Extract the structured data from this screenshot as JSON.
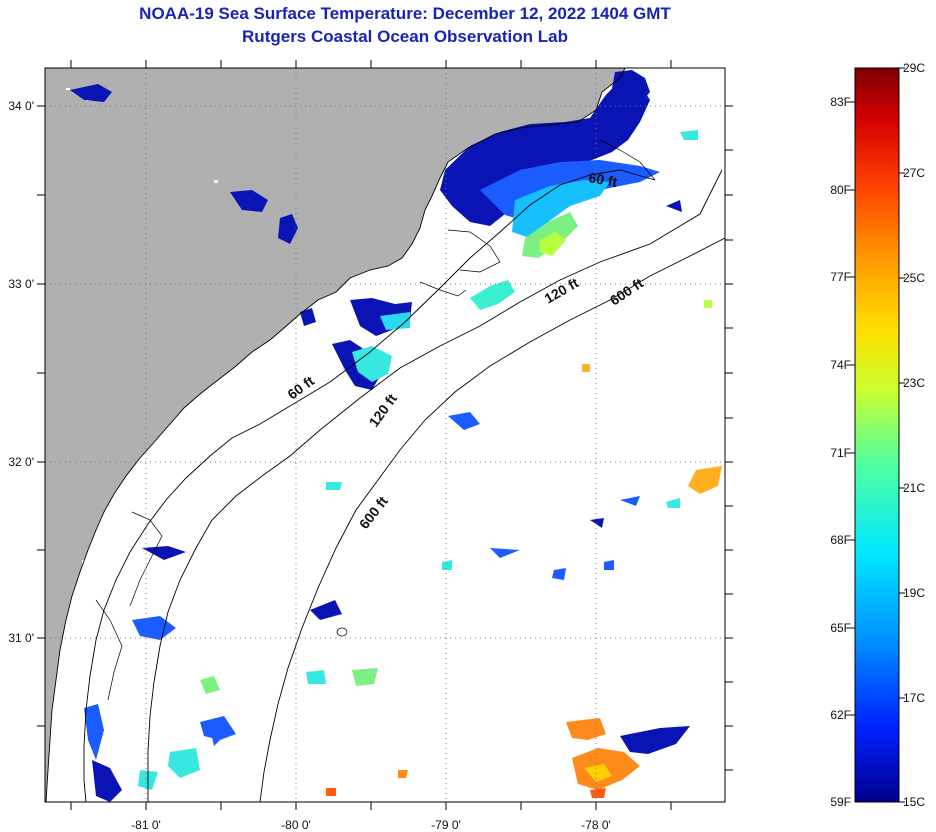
{
  "header": {
    "title": "NOAA-19 Sea Surface Temperature:  December 12, 2022 1404 GMT",
    "subtitle": "Rutgers Coastal Ocean Observation Lab"
  },
  "map": {
    "lon_labels": [
      "-81 0'",
      "-80 0'",
      "-79 0'",
      "-78 0'"
    ],
    "lat_labels": [
      "34 0'",
      "33 0'",
      "32 0'",
      "31 0'"
    ],
    "contours": [
      "60 ft",
      "120 ft",
      "600 ft",
      "60 ft",
      "120 ft",
      "600 ft"
    ]
  },
  "colorbar": {
    "fahrenheit": [
      "83F",
      "80F",
      "77F",
      "74F",
      "71F",
      "68F",
      "65F",
      "62F",
      "59F"
    ],
    "celsius": [
      "29C",
      "27C",
      "25C",
      "23C",
      "21C",
      "19C",
      "17C",
      "15C"
    ],
    "colors": [
      "#7f0000",
      "#d40000",
      "#ff4000",
      "#ff9a00",
      "#ffe000",
      "#c8ff30",
      "#50ffa0",
      "#00e8ff",
      "#0090ff",
      "#0020ff",
      "#00008c"
    ]
  }
}
